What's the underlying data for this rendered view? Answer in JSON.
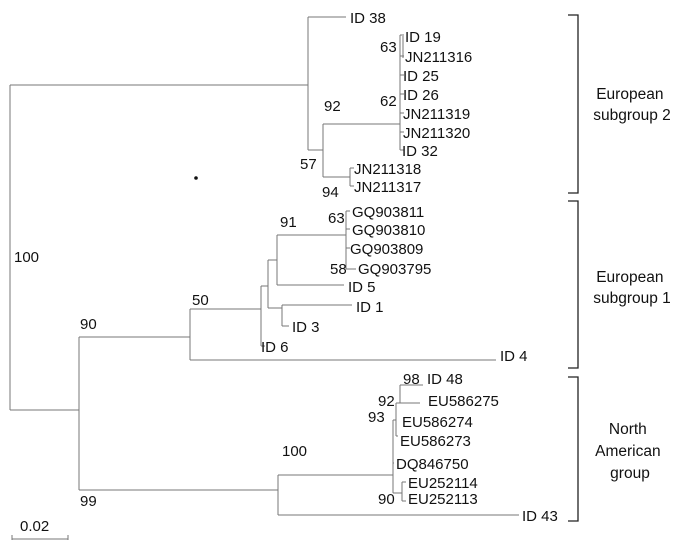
{
  "tips": {
    "id38": "ID 38",
    "id19": "ID 19",
    "jn211316": "JN211316",
    "id25": "ID 25",
    "id26": "ID 26",
    "jn211319": "JN211319",
    "jn211320": "JN211320",
    "id32": "ID 32",
    "jn211318": "JN211318",
    "jn211317": "JN211317",
    "gq903811": "GQ903811",
    "gq903810": "GQ903810",
    "gq903809": "GQ903809",
    "gq903795": "GQ903795",
    "id5": "ID 5",
    "id1": "ID 1",
    "id3": "ID 3",
    "id6": "ID 6",
    "id4": "ID 4",
    "id48": "ID 48",
    "eu586275": "EU586275",
    "eu586274": "EU586274",
    "eu586273": "EU586273",
    "dq846750": "DQ846750",
    "eu252114": "EU252114",
    "eu252113": "EU252113",
    "id43": "ID 43"
  },
  "bootstrap": {
    "root": "100",
    "european2_inner": "92",
    "european2_clade_63": "63",
    "european2_clade_62": "62",
    "european2_clade_57": "57",
    "european2_clade_94": "94",
    "european1_gq": "91",
    "european1_gq_63": "63",
    "european1_gq_58": "58",
    "european1_base": "50",
    "european1_outer": "90",
    "north_american_outer": "99",
    "north_american_inner": "100",
    "north_american_98": "98",
    "north_american_92": "92",
    "north_american_93": "93",
    "north_american_90": "90"
  },
  "groups": {
    "european_subgroup_2": [
      "European",
      "subgroup 2"
    ],
    "european_subgroup_1": [
      "European",
      "subgroup 1"
    ],
    "north_american_group": [
      "North",
      "American",
      "group"
    ]
  },
  "scale_bar": {
    "label": "0.02"
  }
}
